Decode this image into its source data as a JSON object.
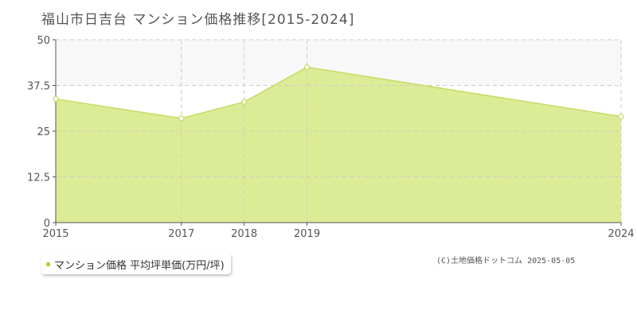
{
  "title": "福山市日吉台 マンション価格推移[2015-2024]",
  "copyright": "(C)土地価格ドットコム 2025-05-05",
  "colors": {
    "fill": "#dcec96",
    "line": "#c4dc64",
    "band": "#f8f8f8",
    "grid": "#cccccc",
    "axis": "#555555",
    "legend_marker": "#b5d33b"
  },
  "chart_data": {
    "type": "area",
    "x": [
      "2015",
      "2017",
      "2018",
      "2019",
      "2024"
    ],
    "series": [
      {
        "name": "マンション価格 平均坪単価(万円/坪)",
        "values": [
          33.8,
          28.5,
          33.0,
          42.5,
          29.0
        ]
      }
    ],
    "yticks": [
      "0",
      "12.5",
      "25",
      "37.5",
      "50"
    ],
    "ylim": [
      0,
      50
    ],
    "grid": true,
    "legend": "bottom-left"
  }
}
